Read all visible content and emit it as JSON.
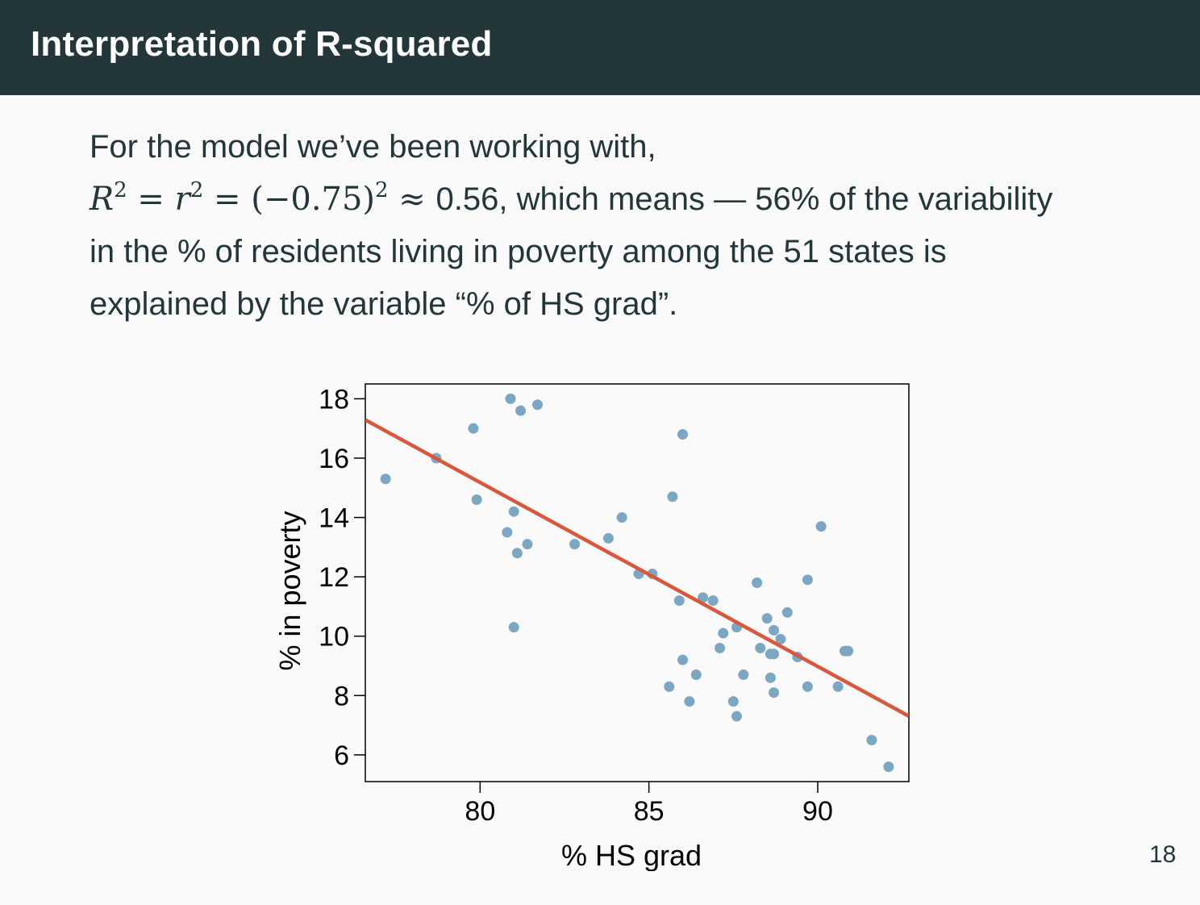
{
  "slide": {
    "title": "Interpretation of R-squared",
    "page_number": "18",
    "intro": "For the model we’ve been working with,",
    "formula": {
      "R": "R",
      "sq1": "2",
      "eq1": " = ",
      "r": "r",
      "sq2": "2",
      "eq2": " = (−0.75)",
      "sq3": "2",
      "approx": " ≈ ",
      "rest": "0.56, which means — 56% of the variability"
    },
    "line3": "in the % of residents living in poverty among the 51 states is",
    "line4": "explained by the variable “% of HS grad”."
  },
  "chart_data": {
    "type": "scatter",
    "xlabel": "% HS grad",
    "ylabel": "% in poverty",
    "xlim": [
      76.6,
      92.7
    ],
    "ylim": [
      5.1,
      18.5
    ],
    "xticks": [
      80,
      85,
      90
    ],
    "yticks": [
      6,
      8,
      10,
      12,
      14,
      16,
      18
    ],
    "point_color": "#7ba7c4",
    "line_color": "#d9573b",
    "regression": {
      "intercept": 64.78,
      "slope": -0.62
    },
    "points": [
      {
        "x": 77.2,
        "y": 15.3
      },
      {
        "x": 78.7,
        "y": 16.0
      },
      {
        "x": 79.8,
        "y": 17.0
      },
      {
        "x": 79.9,
        "y": 14.6
      },
      {
        "x": 80.9,
        "y": 18.0
      },
      {
        "x": 81.2,
        "y": 17.6
      },
      {
        "x": 81.7,
        "y": 17.8
      },
      {
        "x": 81.0,
        "y": 14.2
      },
      {
        "x": 80.8,
        "y": 13.5
      },
      {
        "x": 81.1,
        "y": 12.8
      },
      {
        "x": 81.4,
        "y": 13.1
      },
      {
        "x": 81.0,
        "y": 10.3
      },
      {
        "x": 82.8,
        "y": 13.1
      },
      {
        "x": 83.8,
        "y": 13.3
      },
      {
        "x": 84.2,
        "y": 14.0
      },
      {
        "x": 84.7,
        "y": 12.1
      },
      {
        "x": 85.1,
        "y": 12.1
      },
      {
        "x": 85.7,
        "y": 14.7
      },
      {
        "x": 86.0,
        "y": 16.8
      },
      {
        "x": 85.9,
        "y": 11.2
      },
      {
        "x": 86.6,
        "y": 11.3
      },
      {
        "x": 86.9,
        "y": 11.2
      },
      {
        "x": 87.2,
        "y": 10.1
      },
      {
        "x": 87.6,
        "y": 10.3
      },
      {
        "x": 87.1,
        "y": 9.6
      },
      {
        "x": 86.0,
        "y": 9.2
      },
      {
        "x": 86.4,
        "y": 8.7
      },
      {
        "x": 85.6,
        "y": 8.3
      },
      {
        "x": 86.2,
        "y": 7.8
      },
      {
        "x": 87.5,
        "y": 7.8
      },
      {
        "x": 87.6,
        "y": 7.3
      },
      {
        "x": 87.8,
        "y": 8.7
      },
      {
        "x": 88.3,
        "y": 9.6
      },
      {
        "x": 88.2,
        "y": 11.8
      },
      {
        "x": 88.5,
        "y": 10.6
      },
      {
        "x": 88.7,
        "y": 10.2
      },
      {
        "x": 88.6,
        "y": 9.4
      },
      {
        "x": 88.7,
        "y": 9.4
      },
      {
        "x": 88.9,
        "y": 9.9
      },
      {
        "x": 89.1,
        "y": 10.8
      },
      {
        "x": 88.6,
        "y": 8.6
      },
      {
        "x": 88.7,
        "y": 8.1
      },
      {
        "x": 89.4,
        "y": 9.3
      },
      {
        "x": 89.7,
        "y": 8.3
      },
      {
        "x": 89.7,
        "y": 11.9
      },
      {
        "x": 90.1,
        "y": 13.7
      },
      {
        "x": 90.6,
        "y": 8.3
      },
      {
        "x": 90.8,
        "y": 9.5
      },
      {
        "x": 90.9,
        "y": 9.5
      },
      {
        "x": 91.6,
        "y": 6.5
      },
      {
        "x": 92.1,
        "y": 5.6
      }
    ]
  }
}
